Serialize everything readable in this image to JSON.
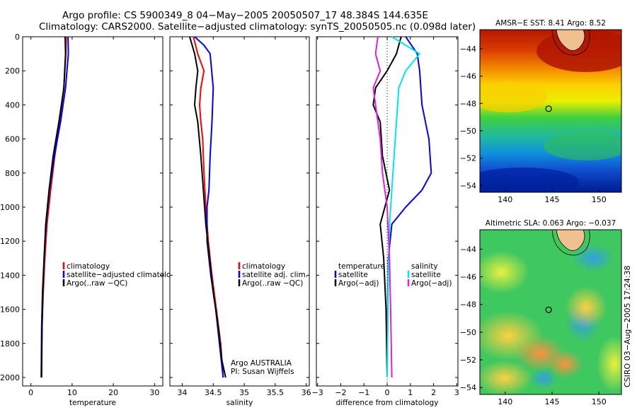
{
  "header": {
    "line1": "Argo profile: CS 5900349_8 04−May−2005 20050507_17 48.384S 144.635E",
    "line2": "Climatology: CARS2000. Satellite−adjusted climatology: synTS_20050505.nc (0.098d later)"
  },
  "side_text": "CSIRO 03−Aug−2005 17:24:38",
  "colors": {
    "climatology": "#ff0000",
    "satellite": "#0000ff",
    "argo": "#000000",
    "salinity_sat": "#00e5ee",
    "salinity_argo": "#e020e0"
  },
  "chart_data": [
    {
      "type": "line",
      "xlabel": "temperature",
      "xlim": [
        -2,
        32
      ],
      "ylim": [
        2050,
        0
      ],
      "xticks": [
        "0",
        "10",
        "20",
        "30"
      ],
      "yticks": [
        "0",
        "200",
        "400",
        "600",
        "800",
        "1000",
        "1200",
        "1400",
        "1600",
        "1800",
        "2000"
      ],
      "legend": [
        "climatology",
        "satellite−adjusted climatology",
        "Argo(..raw −QC)"
      ],
      "series": [
        {
          "name": "climatology",
          "color": "#ff0000",
          "points": [
            [
              8.6,
              0
            ],
            [
              8.5,
              100
            ],
            [
              8.0,
              300
            ],
            [
              7.0,
              500
            ],
            [
              5.8,
              700
            ],
            [
              4.8,
              900
            ],
            [
              3.9,
              1100
            ],
            [
              3.4,
              1300
            ],
            [
              3.0,
              1500
            ],
            [
              2.7,
              1700
            ],
            [
              2.6,
              1900
            ]
          ]
        },
        {
          "name": "satellite−adjusted climatology",
          "color": "#0000ff",
          "points": [
            [
              9.0,
              0
            ],
            [
              9.1,
              100
            ],
            [
              8.4,
              300
            ],
            [
              7.2,
              500
            ],
            [
              5.7,
              700
            ],
            [
              4.5,
              900
            ],
            [
              3.7,
              1100
            ],
            [
              3.2,
              1300
            ],
            [
              2.8,
              1500
            ],
            [
              2.6,
              1700
            ],
            [
              2.5,
              2000
            ]
          ]
        },
        {
          "name": "Argo(..raw −QC)",
          "color": "#000000",
          "points": [
            [
              8.3,
              0
            ],
            [
              8.4,
              100
            ],
            [
              8.0,
              300
            ],
            [
              6.8,
              500
            ],
            [
              5.4,
              700
            ],
            [
              4.4,
              900
            ],
            [
              3.6,
              1100
            ],
            [
              3.2,
              1300
            ],
            [
              2.9,
              1500
            ],
            [
              2.7,
              1700
            ],
            [
              2.6,
              2000
            ]
          ]
        }
      ]
    },
    {
      "type": "line",
      "xlabel": "salinity",
      "xlim": [
        33.8,
        36.05
      ],
      "ylim": [
        2050,
        0
      ],
      "xticks": [
        "34",
        "34.5",
        "35",
        "35.5",
        "36"
      ],
      "legend": [
        "climatology",
        "satellite adj. clim.",
        "Argo(..raw −QC)"
      ],
      "annotation": [
        "Argo AUSTRALIA",
        "PI: Susan Wijffels"
      ],
      "series": [
        {
          "name": "climatology",
          "color": "#ff0000",
          "points": [
            [
              34.18,
              0
            ],
            [
              34.25,
              100
            ],
            [
              34.35,
              200
            ],
            [
              34.3,
              300
            ],
            [
              34.28,
              400
            ],
            [
              34.3,
              500
            ],
            [
              34.33,
              600
            ],
            [
              34.35,
              800
            ],
            [
              34.38,
              1000
            ],
            [
              34.42,
              1200
            ],
            [
              34.48,
              1400
            ],
            [
              34.55,
              1600
            ],
            [
              34.62,
              1800
            ],
            [
              34.66,
              2000
            ]
          ]
        },
        {
          "name": "satellite adj. clim.",
          "color": "#0000ff",
          "points": [
            [
              34.2,
              0
            ],
            [
              34.35,
              50
            ],
            [
              34.45,
              100
            ],
            [
              34.5,
              300
            ],
            [
              34.48,
              500
            ],
            [
              34.45,
              700
            ],
            [
              34.43,
              900
            ],
            [
              34.4,
              1000
            ],
            [
              34.4,
              1200
            ],
            [
              34.46,
              1400
            ],
            [
              34.54,
              1600
            ],
            [
              34.6,
              1800
            ],
            [
              34.66,
              2000
            ]
          ]
        },
        {
          "name": "Argo(..raw −QC)",
          "color": "#000000",
          "points": [
            [
              34.12,
              0
            ],
            [
              34.2,
              100
            ],
            [
              34.25,
              200
            ],
            [
              34.22,
              300
            ],
            [
              34.2,
              400
            ],
            [
              34.25,
              500
            ],
            [
              34.3,
              700
            ],
            [
              34.34,
              900
            ],
            [
              34.38,
              1100
            ],
            [
              34.44,
              1300
            ],
            [
              34.5,
              1500
            ],
            [
              34.58,
              1700
            ],
            [
              34.64,
              1900
            ],
            [
              34.7,
              2000
            ]
          ]
        }
      ]
    },
    {
      "type": "line",
      "xlabel": "difference from climatology",
      "xlim": [
        -3.05,
        3.05
      ],
      "ylim": [
        2050,
        0
      ],
      "xticks": [
        "−3",
        "−2",
        "−1",
        "0",
        "1",
        "2",
        "3"
      ],
      "legend_left": [
        "temperature",
        "satellite",
        "Argo(−adj)"
      ],
      "legend_right": [
        "salinity",
        "satellite",
        "Argo(−adj)"
      ],
      "series": [
        {
          "name": "temperature satellite",
          "color": "#0000ff",
          "points": [
            [
              0.8,
              0
            ],
            [
              1.3,
              100
            ],
            [
              1.4,
              200
            ],
            [
              1.5,
              400
            ],
            [
              1.8,
              600
            ],
            [
              1.9,
              800
            ],
            [
              1.5,
              900
            ],
            [
              0.8,
              1000
            ],
            [
              0.2,
              1100
            ],
            [
              0.05,
              1300
            ],
            [
              0.02,
              1600
            ],
            [
              0.0,
              2000
            ]
          ]
        },
        {
          "name": "temperature Argo(−adj)",
          "color": "#000000",
          "points": [
            [
              0.6,
              0
            ],
            [
              0.4,
              100
            ],
            [
              0.0,
              200
            ],
            [
              -0.5,
              300
            ],
            [
              -0.6,
              400
            ],
            [
              -0.3,
              500
            ],
            [
              -0.2,
              700
            ],
            [
              0.1,
              900
            ],
            [
              -0.3,
              1100
            ],
            [
              -0.15,
              1300
            ],
            [
              -0.05,
              1600
            ],
            [
              0.0,
              2000
            ]
          ]
        },
        {
          "name": "salinity satellite",
          "color": "#00e5ee",
          "points": [
            [
              0.2,
              0
            ],
            [
              0.8,
              50
            ],
            [
              1.4,
              100
            ],
            [
              0.8,
              200
            ],
            [
              0.5,
              300
            ],
            [
              0.4,
              500
            ],
            [
              0.3,
              700
            ],
            [
              0.2,
              900
            ],
            [
              0.1,
              1100
            ],
            [
              0.05,
              1400
            ],
            [
              0.0,
              2000
            ]
          ]
        },
        {
          "name": "salinity Argo(−adj)",
          "color": "#e020e0",
          "points": [
            [
              -0.4,
              0
            ],
            [
              -0.5,
              100
            ],
            [
              -0.3,
              200
            ],
            [
              -0.6,
              300
            ],
            [
              -0.5,
              400
            ],
            [
              -0.3,
              600
            ],
            [
              -0.2,
              800
            ],
            [
              0.0,
              1000
            ],
            [
              0.1,
              1300
            ],
            [
              0.15,
              1600
            ],
            [
              0.2,
              2000
            ]
          ]
        }
      ]
    },
    {
      "type": "heatmap",
      "title": "AMSR−E SST: 8.41 Argo: 8.52",
      "xticks": [
        "140",
        "145",
        "150"
      ],
      "yticks": [
        "−44",
        "−46",
        "−48",
        "−50",
        "−52",
        "−54"
      ],
      "xlim": [
        137.3,
        152.4
      ],
      "ylim": [
        -54.5,
        -42.6
      ],
      "marker": [
        144.635,
        -48.384
      ]
    },
    {
      "type": "heatmap",
      "title": "Altimetric SLA: 0.063 Argo: −0.037",
      "xticks": [
        "140",
        "145",
        "150"
      ],
      "yticks": [
        "−44",
        "−46",
        "−48",
        "−50",
        "−52",
        "−54"
      ],
      "xlim": [
        137.3,
        152.4
      ],
      "ylim": [
        -54.5,
        -42.6
      ],
      "marker": [
        144.635,
        -48.384
      ]
    }
  ]
}
